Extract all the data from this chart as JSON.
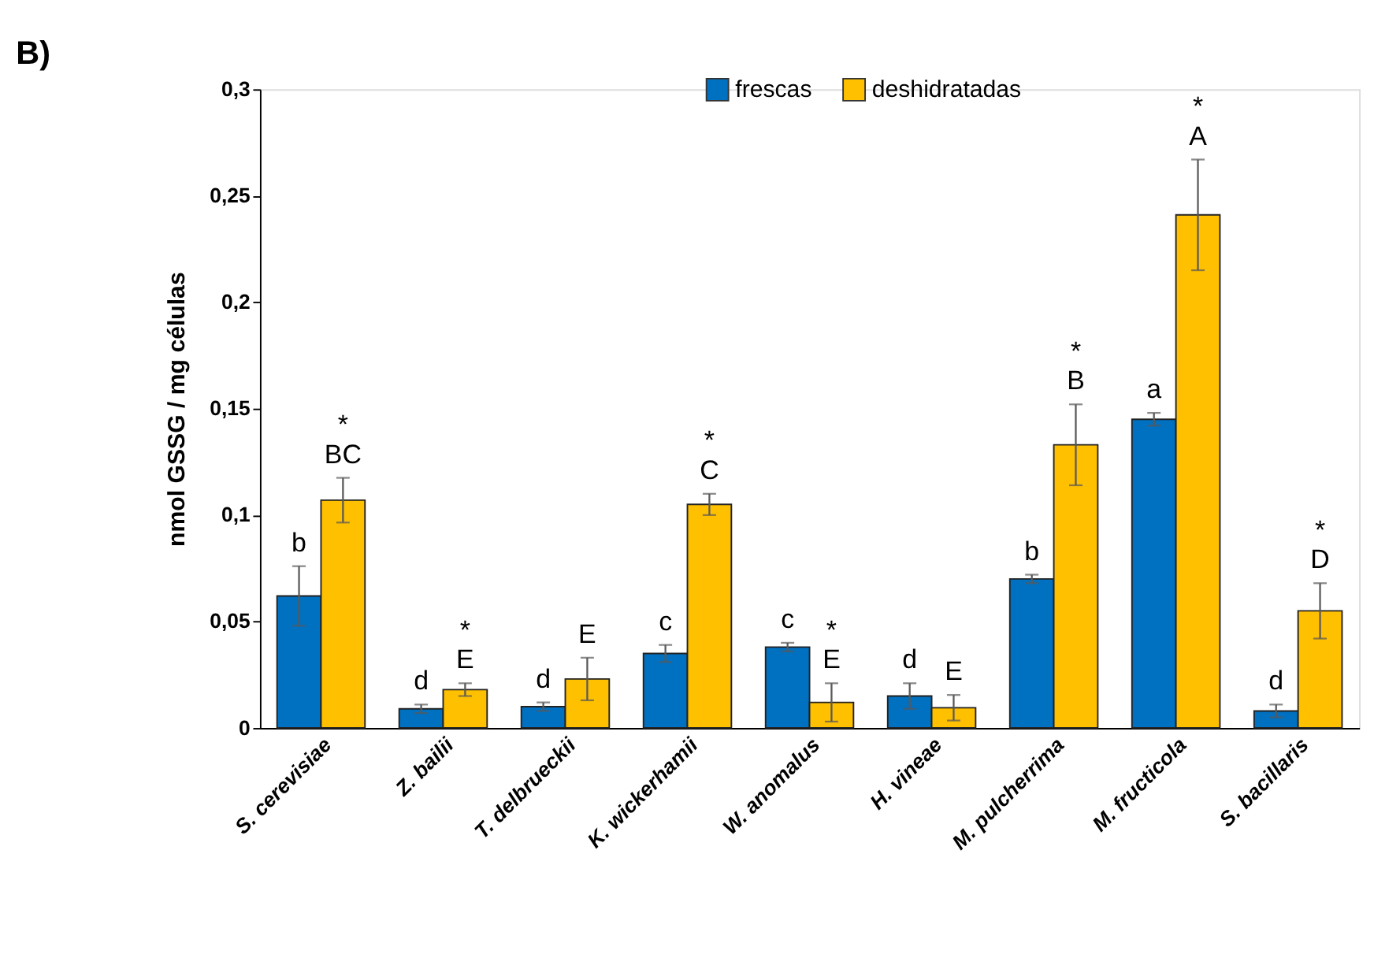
{
  "chart_data": {
    "type": "bar",
    "title": "B)",
    "ylabel": "nmol GSSG / mg células",
    "categories": [
      "S. cerevisiae",
      "Z. bailii",
      "T. delbrueckii",
      "K. wickerhamii",
      "W. anomalus",
      "H. vineae",
      "M. pulcherrima",
      "M. fructicola",
      "S. bacillaris"
    ],
    "series": [
      {
        "name": "frescas",
        "color": "#0070c0",
        "values": [
          0.062,
          0.009,
          0.01,
          0.035,
          0.038,
          0.015,
          0.07,
          0.145,
          0.008
        ],
        "errors": [
          0.014,
          0.002,
          0.002,
          0.004,
          0.002,
          0.006,
          0.002,
          0.003,
          0.003
        ],
        "value_labels": [
          "b",
          "d",
          "d",
          "c",
          "c",
          "d",
          "b",
          "a",
          "d"
        ]
      },
      {
        "name": "deshidratadas",
        "color": "#ffc000",
        "values": [
          0.107,
          0.018,
          0.023,
          0.105,
          0.012,
          0.0095,
          0.133,
          0.241,
          0.055
        ],
        "errors": [
          0.0105,
          0.003,
          0.01,
          0.005,
          0.009,
          0.006,
          0.019,
          0.026,
          0.013
        ],
        "value_labels": [
          "*\nBC",
          "*\nE",
          "E",
          "*\nC",
          "*\nE",
          "E",
          "*\nB",
          "*\nA",
          "*\nD"
        ]
      }
    ],
    "ylim": [
      0,
      0.3
    ],
    "yticks": [
      {
        "value": 0,
        "label": "0"
      },
      {
        "value": 0.05,
        "label": "0,05"
      },
      {
        "value": 0.1,
        "label": "0,1"
      },
      {
        "value": 0.15,
        "label": "0,15"
      },
      {
        "value": 0.2,
        "label": "0,2"
      },
      {
        "value": 0.25,
        "label": "0,25"
      },
      {
        "value": 0.3,
        "label": "0,3"
      }
    ],
    "grid": false,
    "legend": "top"
  }
}
